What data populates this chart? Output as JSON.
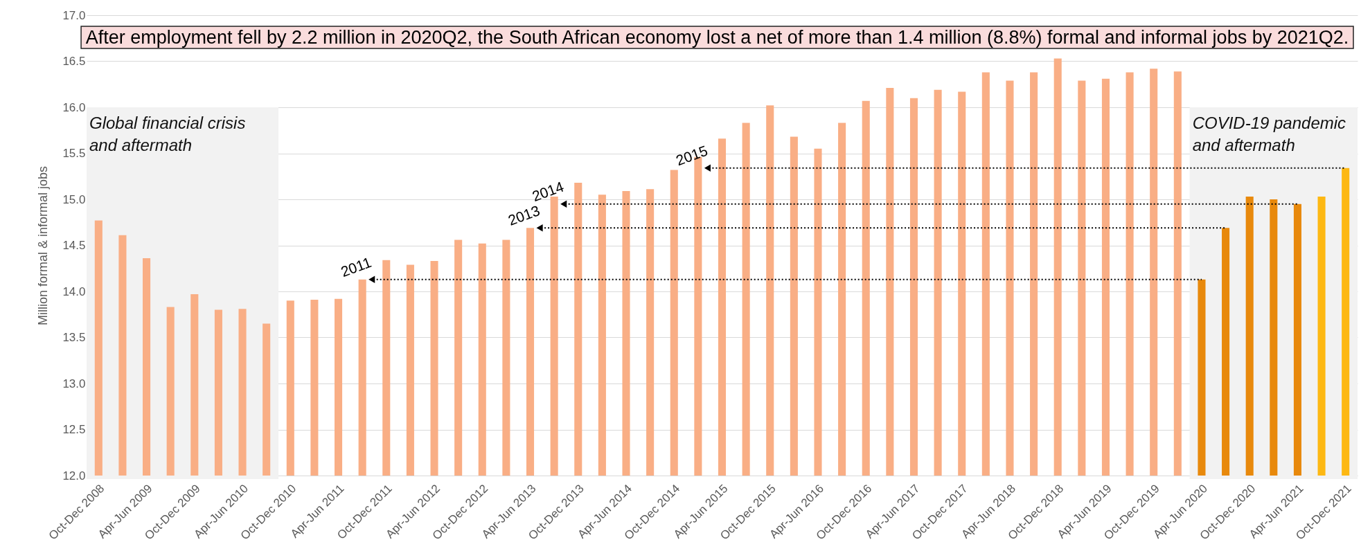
{
  "chart_data": {
    "type": "bar",
    "title": "After employment fell by 2.2 million in 2020Q2, the South African economy lost a net of more than 1.4 million (8.8%) formal and informal jobs by 2021Q2.",
    "ylabel": "Million formal & informal jobs",
    "categories": [
      "Oct-Dec 2008",
      null,
      "Apr-Jun 2009",
      null,
      "Oct-Dec 2009",
      null,
      "Apr-Jun 2010",
      null,
      "Oct-Dec 2010",
      null,
      "Apr-Jun 2011",
      null,
      "Oct-Dec 2011",
      null,
      "Apr-Jun 2012",
      null,
      "Oct-Dec 2012",
      null,
      "Apr-Jun 2013",
      null,
      "Oct-Dec 2013",
      null,
      "Apr-Jun 2014",
      null,
      "Oct-Dec 2014",
      null,
      "Apr-Jun 2015",
      null,
      "Oct-Dec 2015",
      null,
      "Apr-Jun 2016",
      null,
      "Oct-Dec 2016",
      null,
      "Apr-Jun 2017",
      null,
      "Oct-Dec 2017",
      null,
      "Apr-Jun 2018",
      null,
      "Oct-Dec 2018",
      null,
      "Apr-Jun 2019",
      null,
      "Oct-Dec 2019",
      null,
      "Apr-Jun 2020",
      null,
      "Oct-Dec 2020",
      null,
      "Apr-Jun 2021",
      null,
      "Oct-Dec 2021"
    ],
    "values": [
      14.77,
      14.61,
      14.36,
      13.83,
      13.97,
      13.8,
      13.81,
      13.65,
      13.9,
      13.91,
      13.92,
      14.13,
      14.34,
      14.29,
      14.33,
      14.56,
      14.52,
      14.56,
      14.69,
      15.03,
      15.18,
      15.05,
      15.09,
      15.11,
      15.32,
      15.46,
      15.66,
      15.83,
      16.02,
      15.68,
      15.55,
      15.83,
      16.07,
      16.21,
      16.1,
      16.19,
      16.17,
      16.38,
      16.29,
      16.38,
      16.53,
      16.29,
      16.31,
      16.38,
      16.42,
      16.39,
      14.13,
      14.69,
      15.03,
      15.0,
      14.95,
      15.03,
      15.34
    ],
    "colors": [
      "#f9ae85",
      "#f9ae85",
      "#f9ae85",
      "#f9ae85",
      "#f9ae85",
      "#f9ae85",
      "#f9ae85",
      "#f9ae85",
      "#f9ae85",
      "#f9ae85",
      "#f9ae85",
      "#f9ae85",
      "#f9ae85",
      "#f9ae85",
      "#f9ae85",
      "#f9ae85",
      "#f9ae85",
      "#f9ae85",
      "#f9ae85",
      "#f9ae85",
      "#f9ae85",
      "#f9ae85",
      "#f9ae85",
      "#f9ae85",
      "#f9ae85",
      "#f9ae85",
      "#f9ae85",
      "#f9ae85",
      "#f9ae85",
      "#f9ae85",
      "#f9ae85",
      "#f9ae85",
      "#f9ae85",
      "#f9ae85",
      "#f9ae85",
      "#f9ae85",
      "#f9ae85",
      "#f9ae85",
      "#f9ae85",
      "#f9ae85",
      "#f9ae85",
      "#f9ae85",
      "#f9ae85",
      "#f9ae85",
      "#f9ae85",
      "#f9ae85",
      "#e8890c",
      "#e8890c",
      "#e8890c",
      "#e8890c",
      "#e8890c",
      "#fdb813",
      "#fdb813"
    ],
    "ylim": [
      12,
      17
    ],
    "yticks": [
      {
        "value": 12,
        "label": "12.0"
      },
      {
        "value": 12.5,
        "label": "12.5"
      },
      {
        "value": 13,
        "label": "13.0"
      },
      {
        "value": 13.5,
        "label": "13.5"
      },
      {
        "value": 14,
        "label": "14.0"
      },
      {
        "value": 14.5,
        "label": "14.5"
      },
      {
        "value": 15,
        "label": "15.0"
      },
      {
        "value": 15.5,
        "label": "15.5"
      },
      {
        "value": 16,
        "label": "16.0"
      },
      {
        "value": 16.5,
        "label": "16.5"
      },
      {
        "value": 17,
        "label": "17.0"
      }
    ],
    "grid": "y",
    "bands": [
      {
        "axis": "x",
        "from": "Oct-Dec 2008",
        "to": "Oct-Dec 2010",
        "label": "Global financial crisis\nand aftermath",
        "color": "#f2f2f2"
      },
      {
        "axis": "x",
        "from": "Apr-Jun 2020",
        "to": "Oct-Dec 2021",
        "label": "COVID-19 pandemic\nand aftermath",
        "color": "#f2f2f2"
      }
    ],
    "annotations": [
      {
        "text": "2011",
        "y": 14.13
      },
      {
        "text": "2013",
        "y": 14.69
      },
      {
        "text": "2014",
        "y": 14.95
      },
      {
        "text": "2015",
        "y": 15.34
      }
    ]
  }
}
